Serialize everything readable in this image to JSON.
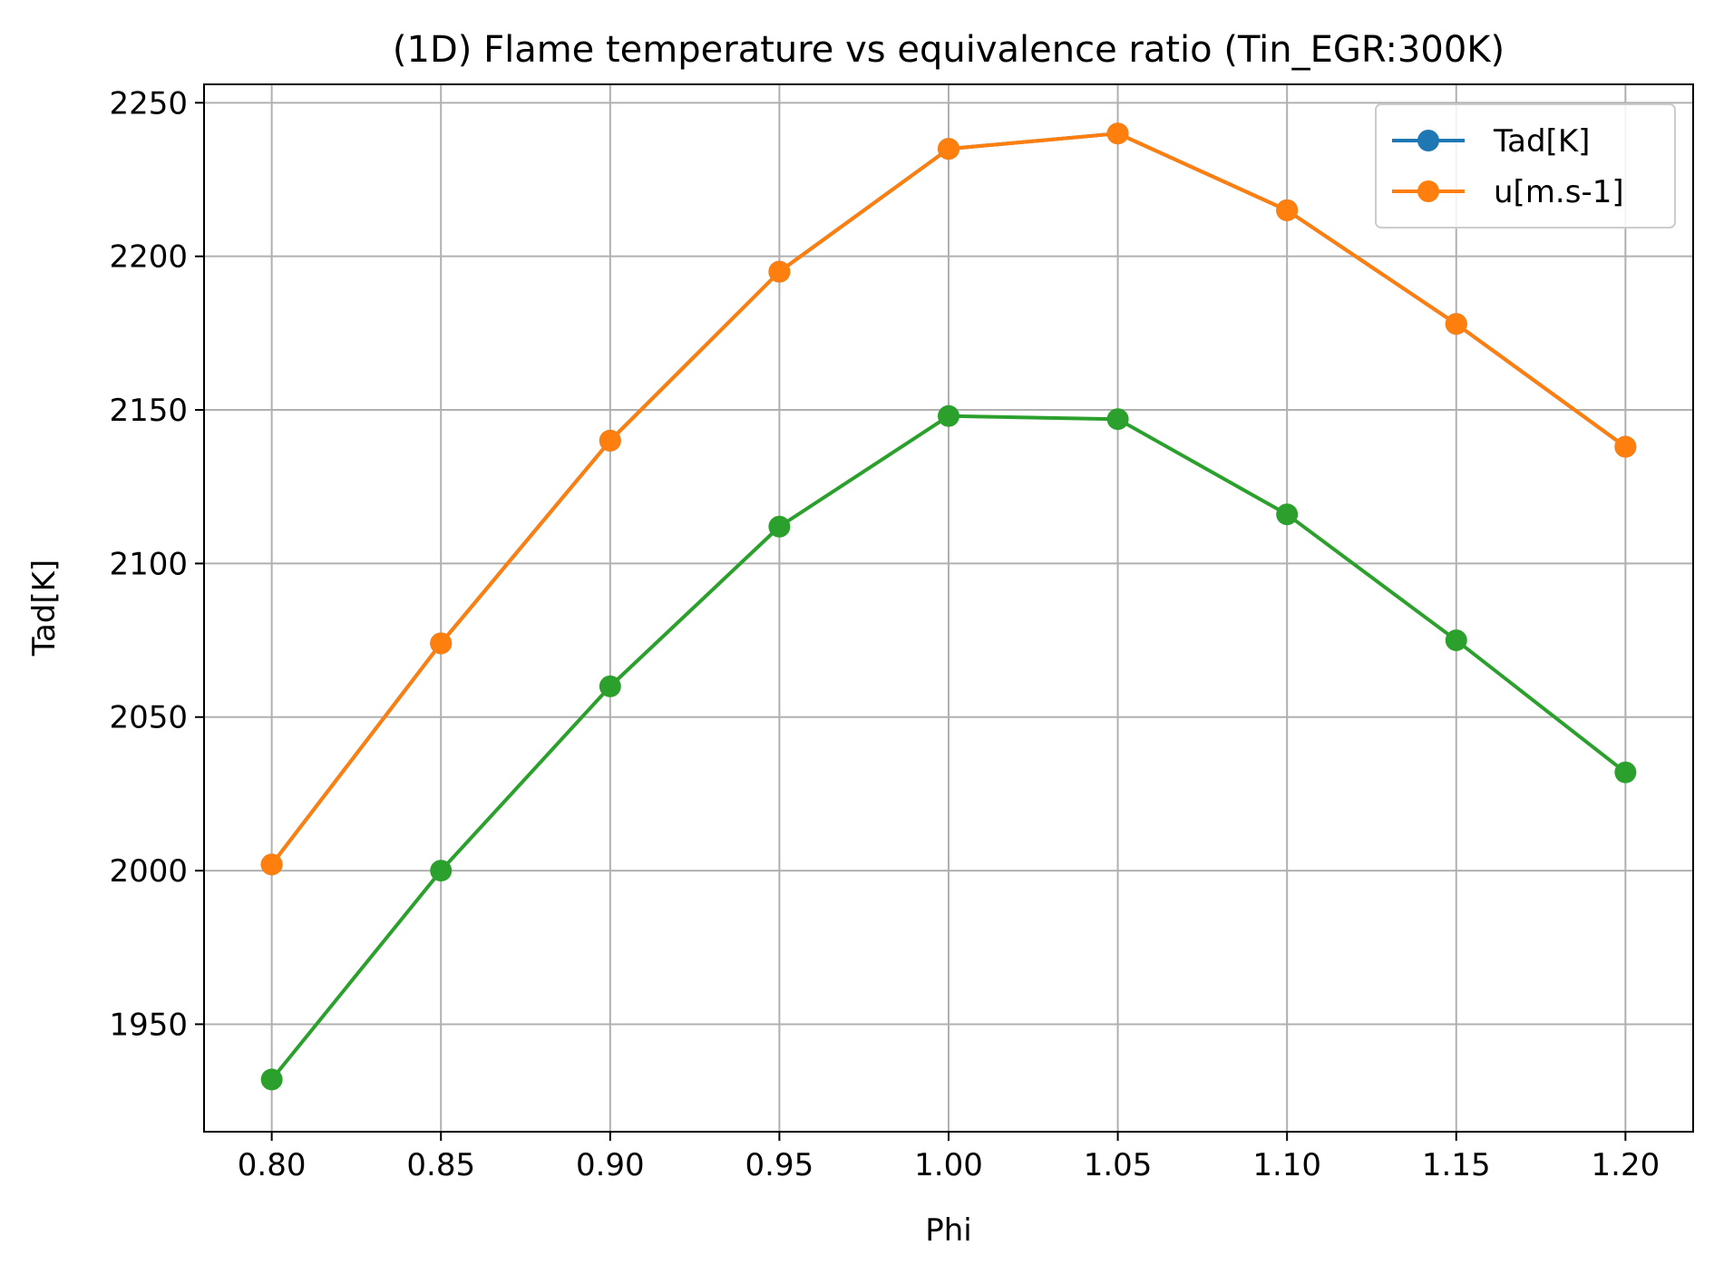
{
  "chart_data": {
    "type": "line",
    "title": "(1D) Flame temperature vs equivalence ratio (Tin_EGR:300K)",
    "xlabel": "Phi",
    "ylabel": "Tad[K]",
    "x": [
      0.8,
      0.85,
      0.9,
      0.95,
      1.0,
      1.05,
      1.1,
      1.15,
      1.2
    ],
    "x_tick_labels": [
      "0.80",
      "0.85",
      "0.90",
      "0.95",
      "1.00",
      "1.05",
      "1.10",
      "1.15",
      "1.20"
    ],
    "y_ticks": [
      1950,
      2000,
      2050,
      2100,
      2150,
      2200,
      2250
    ],
    "y_tick_labels": [
      "1950",
      "2000",
      "2050",
      "2100",
      "2150",
      "2200",
      "2250"
    ],
    "xlim": [
      0.78,
      1.22
    ],
    "ylim": [
      1915,
      2256
    ],
    "grid": true,
    "legend_position": "top-right",
    "series": [
      {
        "name": "Tad[K]",
        "color": "#1f77b4",
        "values": [
          2002,
          2074,
          2140,
          2195,
          2235,
          2240,
          2215,
          2178,
          2138
        ],
        "in_legend": true
      },
      {
        "name": "u[m.s-1]",
        "color": "#ff7f0e",
        "values": [
          2002,
          2074,
          2140,
          2195,
          2235,
          2240,
          2215,
          2178,
          2138
        ],
        "in_legend": true
      },
      {
        "name": "",
        "color": "#2ca02c",
        "values": [
          1932,
          2000,
          2060,
          2112,
          2148,
          2147,
          2116,
          2075,
          2032
        ],
        "in_legend": false
      }
    ]
  }
}
